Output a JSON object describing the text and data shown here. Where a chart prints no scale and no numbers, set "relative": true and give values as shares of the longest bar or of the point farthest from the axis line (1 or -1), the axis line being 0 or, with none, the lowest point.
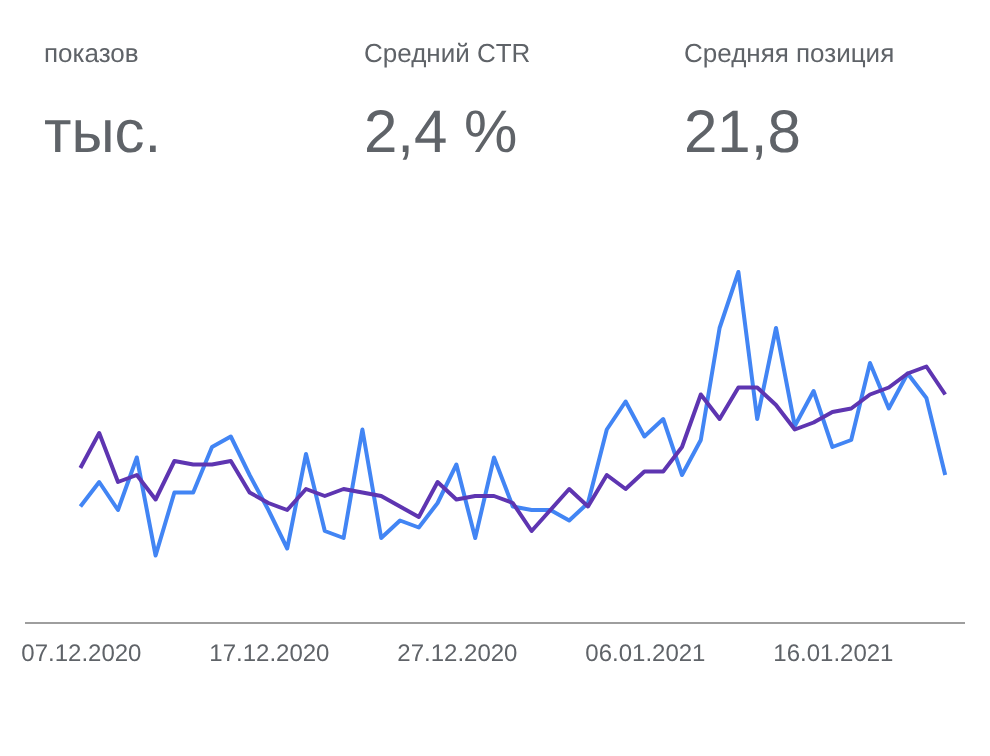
{
  "chart_data": {
    "annotations": [
      "показов",
      "тыс.",
      "Средний CTR",
      "2,4 %",
      "Средняя позиция",
      "21,8"
    ],
    "type": "line",
    "relative": true,
    "legend": false,
    "marker": "none",
    "line_style": "solid",
    "x": [
      "2020-12-07",
      "2020-12-08",
      "2020-12-09",
      "2020-12-10",
      "2020-12-11",
      "2020-12-12",
      "2020-12-13",
      "2020-12-14",
      "2020-12-15",
      "2020-12-16",
      "2020-12-17",
      "2020-12-18",
      "2020-12-19",
      "2020-12-20",
      "2020-12-21",
      "2020-12-22",
      "2020-12-23",
      "2020-12-24",
      "2020-12-25",
      "2020-12-26",
      "2020-12-27",
      "2020-12-28",
      "2020-12-29",
      "2020-12-30",
      "2020-12-31",
      "2021-01-01",
      "2021-01-02",
      "2021-01-03",
      "2021-01-04",
      "2021-01-05",
      "2021-01-06",
      "2021-01-07",
      "2021-01-08",
      "2021-01-09",
      "2021-01-10",
      "2021-01-11",
      "2021-01-12",
      "2021-01-13",
      "2021-01-14",
      "2021-01-15",
      "2021-01-16",
      "2021-01-17",
      "2021-01-18",
      "2021-01-19",
      "2021-01-20",
      "2021-01-21",
      "2021-01-22"
    ],
    "xlim": [
      "2020-12-04",
      "2021-01-23"
    ],
    "xticks": [
      {
        "value": "2020-12-07",
        "label": "07.12.2020"
      },
      {
        "value": "2020-12-17",
        "label": "17.12.2020"
      },
      {
        "value": "2020-12-27",
        "label": "27.12.2020"
      },
      {
        "value": "2021-01-06",
        "label": "06.01.2021"
      },
      {
        "value": "2021-01-16",
        "label": "16.01.2021"
      }
    ],
    "series": [
      {
        "color": "#4285f4",
        "values": [
          0.33,
          0.4,
          0.32,
          0.47,
          0.19,
          0.37,
          0.37,
          0.5,
          0.53,
          0.42,
          0.32,
          0.21,
          0.48,
          0.26,
          0.24,
          0.55,
          0.24,
          0.29,
          0.27,
          0.34,
          0.45,
          0.24,
          0.47,
          0.33,
          0.32,
          0.32,
          0.29,
          0.34,
          0.55,
          0.63,
          0.53,
          0.58,
          0.42,
          0.52,
          0.84,
          1,
          0.58,
          0.84,
          0.56,
          0.66,
          0.5,
          0.52,
          0.74,
          0.61,
          0.71,
          0.64,
          0.42
        ]
      },
      {
        "color": "#5e35b1",
        "values": [
          0.44,
          0.54,
          0.4,
          0.42,
          0.35,
          0.46,
          0.45,
          0.45,
          0.46,
          0.37,
          0.34,
          0.32,
          0.38,
          0.36,
          0.38,
          0.37,
          0.36,
          0.33,
          0.3,
          0.4,
          0.35,
          0.36,
          0.36,
          0.34,
          0.26,
          0.32,
          0.38,
          0.33,
          0.42,
          0.38,
          0.43,
          0.43,
          0.5,
          0.65,
          0.58,
          0.67,
          0.67,
          0.62,
          0.55,
          0.57,
          0.6,
          0.61,
          0.65,
          0.67,
          0.71,
          0.73,
          0.65
        ]
      }
    ]
  }
}
